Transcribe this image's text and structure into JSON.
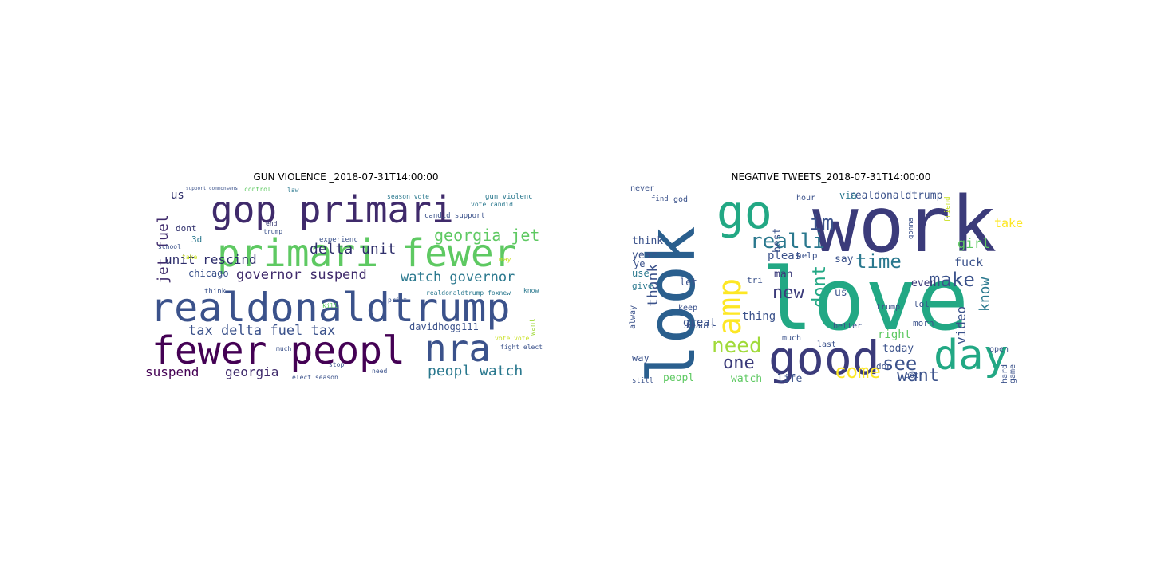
{
  "panels": [
    {
      "title": "GUN VIOLENCE _2018-07-31T14:00:00",
      "words": [
        {
          "text": "gop primari",
          "color": "#3f2a6b"
        },
        {
          "text": "primari fewer",
          "color": "#5ec962"
        },
        {
          "text": "realdonaldtrump",
          "color": "#3b528b"
        },
        {
          "text": "fewer peopl",
          "color": "#440154"
        },
        {
          "text": "nra",
          "color": "#3b528b"
        },
        {
          "text": "delta unit",
          "color": "#2f2f6b"
        },
        {
          "text": "georgia jet",
          "color": "#5ec962"
        },
        {
          "text": "jet fuel",
          "color": "#3f2a6b"
        },
        {
          "text": "unit rescind",
          "color": "#2d2d6b"
        },
        {
          "text": "governor suspend",
          "color": "#3f2a6b"
        },
        {
          "text": "watch governor",
          "color": "#2a788e"
        },
        {
          "text": "tax delta fuel tax",
          "color": "#3b528b"
        },
        {
          "text": "peopl watch",
          "color": "#2a788e"
        },
        {
          "text": "suspend",
          "color": "#440154"
        },
        {
          "text": "georgia",
          "color": "#3f2a6b"
        },
        {
          "text": "davidhogg111",
          "color": "#3b528b"
        },
        {
          "text": "chicago",
          "color": "#3b528b"
        },
        {
          "text": "us",
          "color": "#2f2f6b"
        },
        {
          "text": "dont",
          "color": "#2d2d6b"
        },
        {
          "text": "3d",
          "color": "#2a788e"
        },
        {
          "text": "gun violenc",
          "color": "#2a788e"
        },
        {
          "text": "candid support",
          "color": "#3b528b"
        },
        {
          "text": "vote candid",
          "color": "#2a788e"
        },
        {
          "text": "season vote",
          "color": "#2a788e"
        },
        {
          "text": "experienc",
          "color": "#3b528b"
        },
        {
          "text": "realdonaldtrump foxnew",
          "color": "#2a788e"
        },
        {
          "text": "know",
          "color": "#2a788e"
        },
        {
          "text": "want",
          "color": "#a0da39"
        },
        {
          "text": "print",
          "color": "#3b528b"
        },
        {
          "text": "take",
          "color": "#c8e020"
        },
        {
          "text": "think",
          "color": "#3b528b"
        },
        {
          "text": "school",
          "color": "#3b528b"
        },
        {
          "text": "control",
          "color": "#5ec962"
        },
        {
          "text": "end",
          "color": "#2f2f6b"
        },
        {
          "text": "trump",
          "color": "#3b528b"
        },
        {
          "text": "kill",
          "color": "#5ec962"
        },
        {
          "text": "much",
          "color": "#3b528b"
        },
        {
          "text": "stop",
          "color": "#3b528b"
        },
        {
          "text": "need",
          "color": "#3b528b"
        },
        {
          "text": "elect season",
          "color": "#3b528b"
        },
        {
          "text": "fight elect",
          "color": "#3b528b"
        },
        {
          "text": "vote vote",
          "color": "#c8e020"
        },
        {
          "text": "may",
          "color": "#c8e020"
        },
        {
          "text": "law",
          "color": "#2a788e"
        },
        {
          "text": "support commonsens",
          "color": "#3b528b"
        }
      ]
    },
    {
      "title": "NEGATIVE TWEETS_2018-07-31T14:00:00",
      "words": [
        {
          "text": "work",
          "color": "#3b3b7a"
        },
        {
          "text": "love",
          "color": "#22a884"
        },
        {
          "text": "look",
          "color": "#2a5f8e"
        },
        {
          "text": "go",
          "color": "#22a884"
        },
        {
          "text": "amp",
          "color": "#fde725"
        },
        {
          "text": "good",
          "color": "#3b3b7a"
        },
        {
          "text": "day",
          "color": "#22a884"
        },
        {
          "text": "realli",
          "color": "#2a788e"
        },
        {
          "text": "im",
          "color": "#3b528b"
        },
        {
          "text": "time",
          "color": "#2a788e"
        },
        {
          "text": "make",
          "color": "#3b528b"
        },
        {
          "text": "new",
          "color": "#3b3b7a"
        },
        {
          "text": "dont",
          "color": "#22a884"
        },
        {
          "text": "need",
          "color": "#a0da39"
        },
        {
          "text": "come",
          "color": "#fde725"
        },
        {
          "text": "see",
          "color": "#3b528b"
        },
        {
          "text": "want",
          "color": "#3b528b"
        },
        {
          "text": "one",
          "color": "#3b3b7a"
        },
        {
          "text": "thank",
          "color": "#3b528b"
        },
        {
          "text": "know",
          "color": "#2a788e"
        },
        {
          "text": "video",
          "color": "#3b528b"
        },
        {
          "text": "fuck",
          "color": "#3b528b"
        },
        {
          "text": "girl",
          "color": "#5ec962"
        },
        {
          "text": "take",
          "color": "#fde725"
        },
        {
          "text": "realdonaldtrump",
          "color": "#3b528b"
        },
        {
          "text": "pleas",
          "color": "#3b528b"
        },
        {
          "text": "say",
          "color": "#3b528b"
        },
        {
          "text": "even",
          "color": "#3b3b7a"
        },
        {
          "text": "great",
          "color": "#3b528b"
        },
        {
          "text": "watch",
          "color": "#5ec962"
        },
        {
          "text": "man",
          "color": "#3b3b7a"
        },
        {
          "text": "thing",
          "color": "#3b528b"
        },
        {
          "text": "right",
          "color": "#5ec962"
        },
        {
          "text": "today",
          "color": "#3b528b"
        },
        {
          "text": "life",
          "color": "#3b528b"
        },
        {
          "text": "peopl",
          "color": "#5ec962"
        },
        {
          "text": "year",
          "color": "#3b528b"
        },
        {
          "text": "think",
          "color": "#3b528b"
        },
        {
          "text": "use",
          "color": "#2a788e"
        },
        {
          "text": "give",
          "color": "#2a788e"
        },
        {
          "text": "let",
          "color": "#3b528b"
        },
        {
          "text": "keep",
          "color": "#3b528b"
        },
        {
          "text": "best",
          "color": "#3b528b"
        },
        {
          "text": "via",
          "color": "#2a788e"
        },
        {
          "text": "help",
          "color": "#3b528b"
        },
        {
          "text": "us",
          "color": "#3b528b"
        },
        {
          "text": "tri",
          "color": "#3b528b"
        },
        {
          "text": "lol",
          "color": "#3b528b"
        },
        {
          "text": "trump",
          "color": "#3b528b"
        },
        {
          "text": "morn",
          "color": "#3b528b"
        },
        {
          "text": "game",
          "color": "#3b528b"
        },
        {
          "text": "hard",
          "color": "#3b528b"
        },
        {
          "text": "open",
          "color": "#3b528b"
        },
        {
          "text": "better",
          "color": "#3b528b"
        },
        {
          "text": "don",
          "color": "#3b528b"
        },
        {
          "text": "got",
          "color": "#3b528b"
        },
        {
          "text": "way",
          "color": "#3b528b"
        },
        {
          "text": "alway",
          "color": "#3b528b"
        },
        {
          "text": "ye",
          "color": "#3b528b"
        },
        {
          "text": "never",
          "color": "#3b528b"
        },
        {
          "text": "god",
          "color": "#3b528b"
        },
        {
          "text": "find",
          "color": "#3b528b"
        },
        {
          "text": "beauti",
          "color": "#3b528b"
        },
        {
          "text": "much",
          "color": "#3b528b"
        },
        {
          "text": "last",
          "color": "#3b528b"
        },
        {
          "text": "still",
          "color": "#3b528b"
        },
        {
          "text": "friend",
          "color": "#c8e020"
        },
        {
          "text": "gonna",
          "color": "#3b528b"
        },
        {
          "text": "hour",
          "color": "#3b528b"
        }
      ]
    }
  ]
}
